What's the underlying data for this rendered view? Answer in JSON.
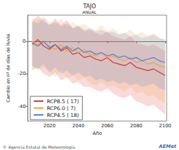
{
  "chart_data": {
    "type": "line",
    "title": "TAJO",
    "subtitle": "ANUAL",
    "x_label": "Año",
    "y_label": "Cambio en nº de días de lluvia",
    "x": [
      2008,
      2012,
      2016,
      2020,
      2024,
      2028,
      2032,
      2036,
      2040,
      2044,
      2048,
      2052,
      2056,
      2060,
      2064,
      2068,
      2072,
      2076,
      2080,
      2084,
      2088,
      2092,
      2096,
      2100
    ],
    "series": [
      {
        "name": "RCP8.5 ( 17)",
        "color": "#d9302a",
        "values": [
          -2,
          1,
          -3,
          -5,
          -2,
          -6,
          -4,
          -8,
          -7,
          -10,
          -9,
          -11,
          -12,
          -10,
          -13,
          -14,
          -15,
          -13,
          -16,
          -17,
          -18,
          -17,
          -19,
          -21
        ],
        "lower": [
          -18,
          -16,
          -20,
          -22,
          -19,
          -24,
          -22,
          -26,
          -25,
          -28,
          -28,
          -30,
          -31,
          -29,
          -32,
          -34,
          -35,
          -33,
          -37,
          -38,
          -40,
          -39,
          -42,
          -45
        ],
        "upper": [
          12,
          16,
          12,
          10,
          14,
          10,
          13,
          8,
          9,
          6,
          7,
          5,
          4,
          6,
          3,
          2,
          1,
          3,
          -1,
          -2,
          -3,
          -2,
          -4,
          -6
        ]
      },
      {
        "name": "RCP6.0 ( 7)",
        "color": "#f2a23c",
        "values": [
          0,
          -2,
          -1,
          -3,
          -5,
          -2,
          -6,
          -4,
          -7,
          -5,
          -8,
          -9,
          -7,
          -10,
          -9,
          -11,
          -12,
          -10,
          -13,
          -12,
          -14,
          -13,
          -15,
          -16
        ],
        "lower": [
          -15,
          -18,
          -16,
          -19,
          -22,
          -18,
          -23,
          -21,
          -24,
          -22,
          -26,
          -27,
          -25,
          -28,
          -27,
          -29,
          -31,
          -28,
          -32,
          -31,
          -34,
          -33,
          -36,
          -38
        ],
        "upper": [
          14,
          13,
          15,
          12,
          10,
          14,
          9,
          12,
          9,
          11,
          8,
          7,
          10,
          6,
          8,
          5,
          5,
          7,
          4,
          6,
          3,
          5,
          2,
          1
        ]
      },
      {
        "name": "RCP4.5 ( 18)",
        "color": "#4a7fd4",
        "values": [
          -1,
          -3,
          0,
          -4,
          -2,
          -5,
          -3,
          -6,
          -4,
          -7,
          -6,
          -8,
          -7,
          -9,
          -8,
          -10,
          -9,
          -11,
          -10,
          -12,
          -11,
          -10,
          -12,
          -13
        ],
        "lower": [
          -15,
          -17,
          -14,
          -19,
          -16,
          -20,
          -18,
          -21,
          -19,
          -22,
          -21,
          -24,
          -23,
          -25,
          -24,
          -26,
          -25,
          -27,
          -26,
          -28,
          -27,
          -26,
          -29,
          -30
        ],
        "upper": [
          12,
          11,
          14,
          10,
          12,
          9,
          11,
          8,
          10,
          7,
          8,
          6,
          7,
          5,
          6,
          4,
          5,
          3,
          4,
          2,
          3,
          4,
          2,
          1
        ]
      }
    ],
    "xlim": [
      2005,
      2101
    ],
    "xticks": [
      2020,
      2040,
      2060,
      2080,
      2100
    ],
    "ylim": [
      -49,
      16
    ],
    "yticks": [
      -40,
      -20,
      0
    ],
    "grid": false,
    "legend": "lower left",
    "annotations": [
      "© Agencia Estatal de Meteorología",
      "AEMet"
    ]
  }
}
